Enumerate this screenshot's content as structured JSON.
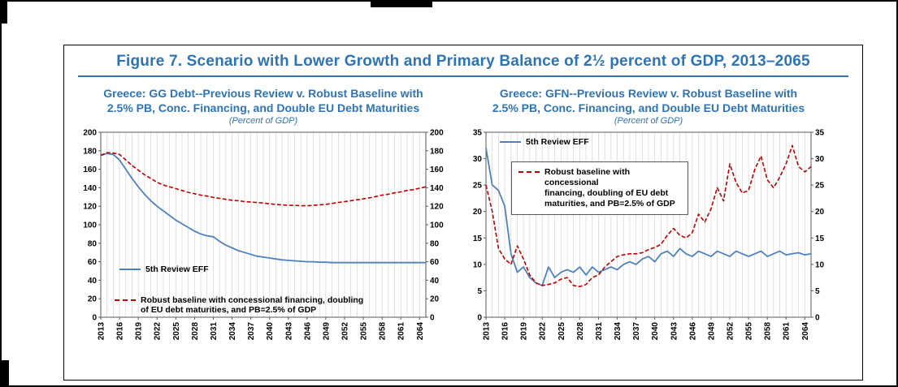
{
  "page": {
    "figure_title": "Figure 7. Scenario with Lower Growth and Primary Balance of 2½ percent of GDP, 2013–2065"
  },
  "charts": {
    "left": {
      "title_line1": "Greece: GG Debt--Previous Review v. Robust Baseline with",
      "title_line2": "2.5% PB, Conc. Financing, and Double EU Debt Maturities",
      "subtitle": "(Percent of GDP)",
      "legend_blue": "5th Review EFF",
      "legend_red_line1": "Robust baseline with concessional financing, doubling",
      "legend_red_line2": "of EU debt maturities, and PB=2.5% of GDP"
    },
    "right": {
      "title_line1": "Greece: GFN--Previous Review v. Robust Baseline with",
      "title_line2": "2.5% PB, Conc. Financing, and Double EU Debt Maturities",
      "subtitle": "(Percent of GDP)",
      "legend_blue": "5th Review EFF",
      "legend_red_line1": "Robust baseline with concessional",
      "legend_red_line2": "financing, doubling of EU debt",
      "legend_red_line3": "maturities, and PB=2.5% of GDP"
    }
  },
  "colors": {
    "title_blue": "#2E74B5",
    "series_blue": "#4F81BD",
    "series_red": "#C00000",
    "grid": "#d4d4d4",
    "axis": "#595959"
  },
  "chart_data": [
    {
      "type": "line",
      "title": "Greece: GG Debt--Previous Review v. Robust Baseline with 2.5% PB, Conc. Financing, and Double EU Debt Maturities",
      "subtitle": "(Percent of GDP)",
      "xlabel": "",
      "ylabel": "Percent of GDP",
      "ylim": [
        0,
        200
      ],
      "yticks": [
        0,
        20,
        40,
        60,
        80,
        100,
        120,
        140,
        160,
        180,
        200
      ],
      "xticks": [
        2013,
        2016,
        2019,
        2022,
        2025,
        2028,
        2031,
        2034,
        2037,
        2040,
        2043,
        2046,
        2049,
        2052,
        2055,
        2058,
        2061,
        2064
      ],
      "grid": "vertical",
      "legend_position": "inside",
      "x": [
        2013,
        2014,
        2015,
        2016,
        2017,
        2018,
        2019,
        2020,
        2021,
        2022,
        2023,
        2024,
        2025,
        2026,
        2027,
        2028,
        2029,
        2030,
        2031,
        2032,
        2033,
        2034,
        2035,
        2036,
        2037,
        2038,
        2039,
        2040,
        2041,
        2042,
        2043,
        2044,
        2045,
        2046,
        2047,
        2048,
        2049,
        2050,
        2051,
        2052,
        2053,
        2054,
        2055,
        2056,
        2057,
        2058,
        2059,
        2060,
        2061,
        2062,
        2063,
        2064,
        2065
      ],
      "series": [
        {
          "name": "5th Review EFF",
          "color": "#4F81BD",
          "dash": null,
          "width": 1.8,
          "values": [
            175,
            177,
            176,
            170,
            160,
            150,
            141,
            133,
            126,
            120,
            115,
            110,
            105,
            101,
            97,
            93,
            90,
            88,
            87,
            82,
            78,
            75,
            72,
            70,
            68,
            66,
            65,
            64,
            63,
            62,
            61.5,
            61,
            60.5,
            60,
            60,
            59.5,
            59.5,
            59,
            59,
            59,
            59,
            59,
            59,
            59,
            59,
            59,
            59,
            59,
            59,
            59,
            59,
            59,
            59
          ]
        },
        {
          "name": "Robust baseline with concessional financing, doubling of EU debt maturities, and PB=2.5% of GDP",
          "color": "#C00000",
          "dash": "5,2.5",
          "width": 1.6,
          "values": [
            175,
            178,
            177.5,
            176,
            170,
            164,
            159,
            154,
            150,
            146,
            143,
            141,
            139,
            137,
            135,
            133.5,
            132,
            131,
            129.5,
            128.5,
            127.5,
            126.5,
            126,
            125,
            124.5,
            124,
            123.5,
            122.5,
            122,
            121.5,
            121,
            121,
            120.5,
            120.5,
            121,
            121.5,
            122,
            123,
            124,
            125,
            126,
            127,
            128,
            129,
            130.5,
            132,
            133,
            134.5,
            135.5,
            137,
            138,
            139.5,
            141
          ]
        }
      ]
    },
    {
      "type": "line",
      "title": "Greece: GFN--Previous Review v. Robust Baseline with 2.5% PB, Conc. Financing, and Double EU Debt Maturities",
      "subtitle": "(Percent of GDP)",
      "xlabel": "",
      "ylabel": "Percent of GDP",
      "ylim": [
        0,
        35
      ],
      "yticks": [
        0,
        5,
        10,
        15,
        20,
        25,
        30,
        35
      ],
      "xticks": [
        2013,
        2016,
        2019,
        2022,
        2025,
        2028,
        2031,
        2034,
        2037,
        2040,
        2043,
        2046,
        2049,
        2052,
        2055,
        2058,
        2061,
        2064
      ],
      "grid": "vertical",
      "legend_position": "inside",
      "x": [
        2013,
        2014,
        2015,
        2016,
        2017,
        2018,
        2019,
        2020,
        2021,
        2022,
        2023,
        2024,
        2025,
        2026,
        2027,
        2028,
        2029,
        2030,
        2031,
        2032,
        2033,
        2034,
        2035,
        2036,
        2037,
        2038,
        2039,
        2040,
        2041,
        2042,
        2043,
        2044,
        2045,
        2046,
        2047,
        2048,
        2049,
        2050,
        2051,
        2052,
        2053,
        2054,
        2055,
        2056,
        2057,
        2058,
        2059,
        2060,
        2061,
        2062,
        2063,
        2064,
        2065
      ],
      "series": [
        {
          "name": "5th Review EFF",
          "color": "#4F81BD",
          "dash": null,
          "width": 1.8,
          "values": [
            32,
            25,
            24,
            21,
            12,
            8.5,
            9.5,
            7.5,
            6.5,
            6,
            9.5,
            7.5,
            8.5,
            9,
            8.5,
            9.5,
            8,
            9.5,
            8.5,
            9,
            9.5,
            9,
            10,
            10.5,
            10,
            11,
            11.5,
            10.5,
            12,
            12.5,
            11.5,
            13,
            12,
            11.5,
            12.5,
            12,
            11.5,
            12.5,
            12,
            11.5,
            12.5,
            12,
            11.5,
            12,
            12.5,
            11.5,
            12,
            12.5,
            11.8,
            12,
            12.2,
            11.8,
            12
          ]
        },
        {
          "name": "Robust baseline with concessional financing, doubling of EU debt maturities, and PB=2.5% of GDP",
          "color": "#C00000",
          "dash": "5,2.5",
          "width": 1.6,
          "values": [
            25,
            20,
            13,
            11,
            10,
            13.5,
            11,
            8,
            6.5,
            6,
            6.2,
            6.5,
            7.2,
            7.5,
            6,
            5.8,
            6.2,
            7.5,
            8,
            9.5,
            10.5,
            11.5,
            11.8,
            12,
            12,
            12.2,
            12.8,
            13.2,
            13.8,
            15.5,
            16.8,
            15.5,
            15,
            16,
            19.5,
            18,
            20.5,
            24.5,
            22,
            29,
            25.5,
            23.5,
            24,
            28,
            30.5,
            26,
            24.5,
            26.5,
            29,
            32.5,
            28.5,
            27.5,
            28.5
          ]
        }
      ]
    }
  ]
}
